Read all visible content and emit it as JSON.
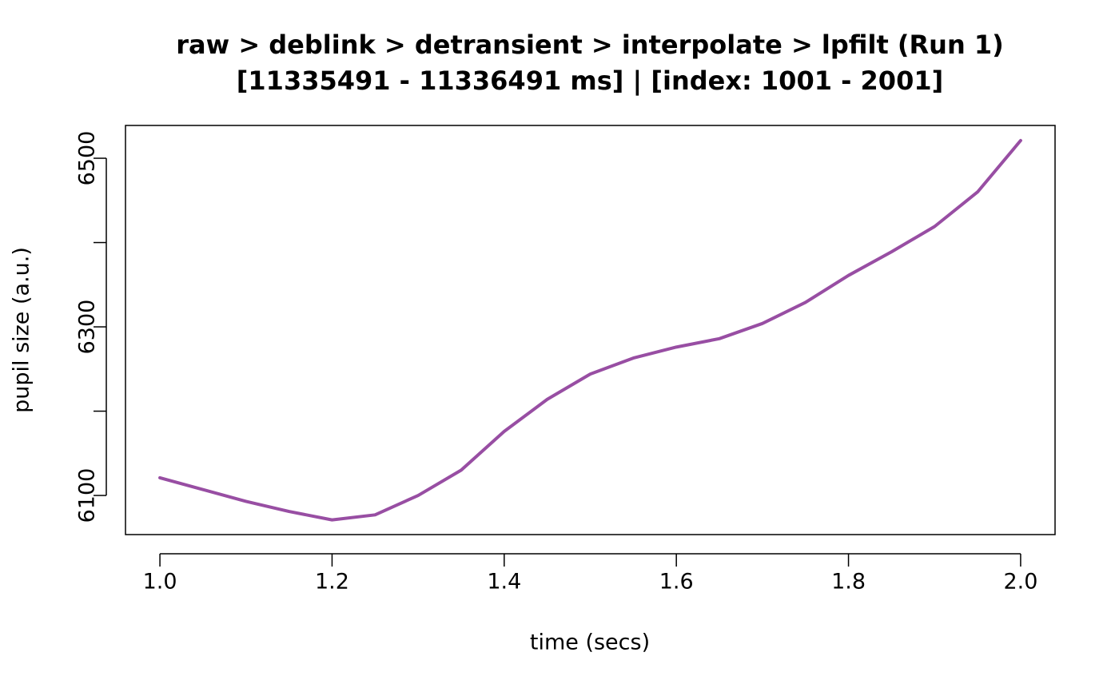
{
  "chart_data": {
    "type": "line",
    "title": "raw > deblink > detransient > interpolate > lpfilt (Run 1)",
    "subtitle": "[11335491 - 11336491 ms] | [index: 1001 - 2001]",
    "x_label": "time (secs)",
    "y_label": "pupil size (a.u.)",
    "x": [
      1.0,
      1.05,
      1.1,
      1.15,
      1.2,
      1.25,
      1.3,
      1.35,
      1.4,
      1.45,
      1.5,
      1.55,
      1.6,
      1.65,
      1.7,
      1.75,
      1.8,
      1.85,
      1.9,
      1.95,
      2.0
    ],
    "values": [
      6121,
      6107,
      6093,
      6081,
      6071,
      6077,
      6100,
      6130,
      6176,
      6214,
      6244,
      6263,
      6276,
      6286,
      6304,
      6329,
      6361,
      6389,
      6419,
      6460,
      6521
    ],
    "color": "#984ea3",
    "xlim": [
      0.96,
      2.04
    ],
    "ylim": [
      6053.6,
      6538.9
    ],
    "xticks": [
      {
        "value": 1,
        "label": "1.0"
      },
      1.2,
      1.4,
      1.6,
      1.8,
      {
        "value": 2,
        "label": "2.0"
      }
    ],
    "yticks": [
      6100,
      {
        "value": 6200,
        "label": null
      },
      6300,
      {
        "value": 6400,
        "label": null
      },
      6500
    ],
    "grid": false
  }
}
